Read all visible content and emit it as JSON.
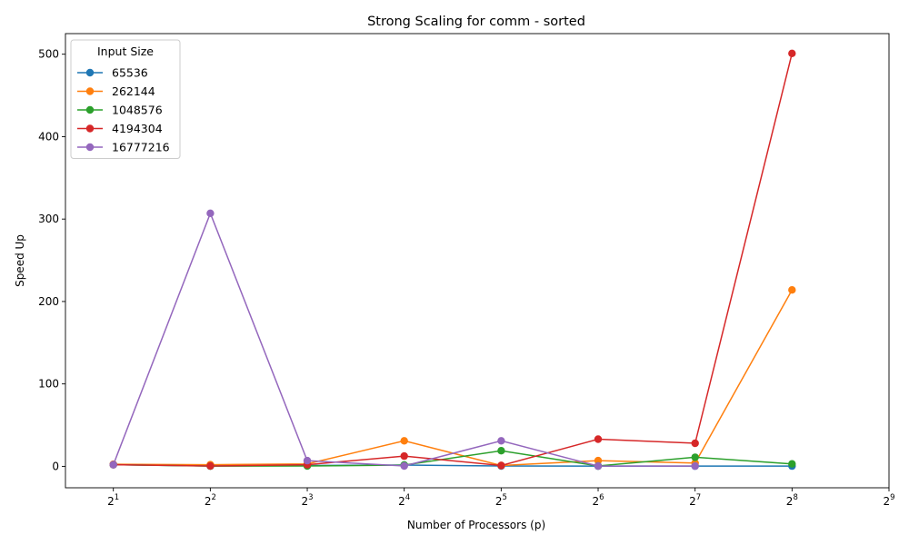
{
  "chart_data": {
    "type": "line",
    "title": "Strong Scaling for comm - sorted",
    "xlabel": "Number of Processors (p)",
    "ylabel": "Speed Up",
    "x_scale": "log2",
    "x": [
      2,
      4,
      8,
      16,
      32,
      64,
      128,
      256
    ],
    "x_ticks": [
      2,
      4,
      8,
      16,
      32,
      64,
      128,
      256,
      512
    ],
    "x_tick_labels": [
      {
        "base": "2",
        "exp": "1"
      },
      {
        "base": "2",
        "exp": "2"
      },
      {
        "base": "2",
        "exp": "3"
      },
      {
        "base": "2",
        "exp": "4"
      },
      {
        "base": "2",
        "exp": "5"
      },
      {
        "base": "2",
        "exp": "6"
      },
      {
        "base": "2",
        "exp": "7"
      },
      {
        "base": "2",
        "exp": "8"
      },
      {
        "base": "2",
        "exp": "9"
      }
    ],
    "xlim": [
      1.42,
      512
    ],
    "ylim": [
      -26,
      525
    ],
    "y_ticks": [
      0,
      100,
      200,
      300,
      400,
      500
    ],
    "y_tick_labels": [
      "0",
      "100",
      "200",
      "300",
      "400",
      "500"
    ],
    "grid": false,
    "legend": {
      "title": "Input Size",
      "placement": "top-left"
    },
    "series": [
      {
        "name": "65536",
        "color": "#1f77b4",
        "values": [
          2.0,
          0.5,
          1.0,
          1.5,
          0.5,
          0.3,
          0.3,
          0.3
        ]
      },
      {
        "name": "262144",
        "color": "#ff7f0e",
        "values": [
          2.5,
          2.0,
          3.0,
          31.0,
          1.0,
          7.0,
          4.0,
          214.0
        ]
      },
      {
        "name": "1048576",
        "color": "#2ca02c",
        "values": [
          2.0,
          0.3,
          0.5,
          1.5,
          19.0,
          0.5,
          11.0,
          3.0
        ]
      },
      {
        "name": "4194304",
        "color": "#d62728",
        "values": [
          2.0,
          0.5,
          2.0,
          12.5,
          1.0,
          33.0,
          28.0,
          501.0
        ]
      },
      {
        "name": "16777216",
        "color": "#9467bd",
        "values": [
          2.0,
          307.0,
          7.0,
          0.5,
          31.0,
          0.3,
          0.3,
          null
        ]
      }
    ]
  }
}
